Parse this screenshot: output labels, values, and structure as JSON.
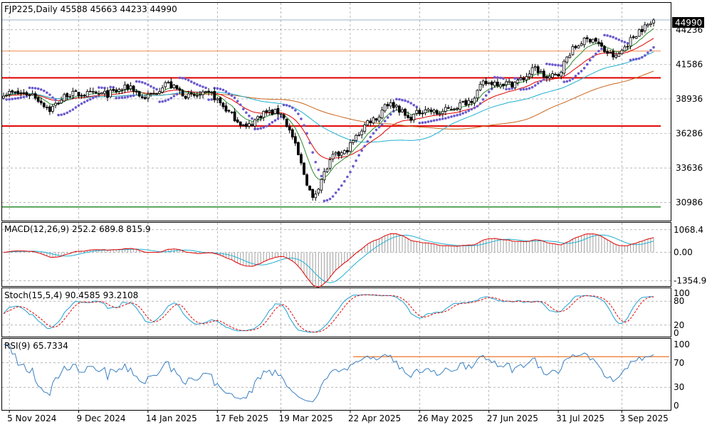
{
  "chart_data": {
    "type": "candlestick",
    "panels": {
      "price": {
        "header": "FJP225,Daily  45588 45663 44233 44990",
        "ylim": [
          29600,
          46300
        ],
        "ticks": [
          44236,
          41586,
          38936,
          36286,
          33636,
          30986
        ],
        "tick_labels": [
          "44236",
          "41586",
          "38936",
          "36286",
          "33636",
          "30986"
        ],
        "last_price_label": "44990",
        "last_price": 44990,
        "horizontal_levels": [
          {
            "value": 44990,
            "color": "#9fb3c8",
            "width": 1
          },
          {
            "value": 42600,
            "color": "#f08a4b",
            "width": 1
          },
          {
            "value": 40550,
            "color": "#e00000",
            "width": 2
          },
          {
            "value": 36850,
            "color": "#e00000",
            "width": 2
          },
          {
            "value": 30650,
            "color": "#2e8b2e",
            "width": 1.5
          }
        ],
        "ma_colors": {
          "fast": "#2e8b2e",
          "mid": "#e00000",
          "slow": "#20b0d0",
          "long": "#c8651b"
        },
        "psar_color": "#6a5acd"
      },
      "macd": {
        "header": "MACD(12,26,9) 252.2 689.8 815.9",
        "ylim": [
          -1600,
          1400
        ],
        "ticks": [
          1068.4,
          0,
          -1354.9
        ],
        "tick_labels": [
          "1068.4",
          "0.00",
          "-1354.9"
        ],
        "main_color": "#e00000",
        "signal_color": "#20b0d0",
        "hist_color": "#a0a0a0"
      },
      "stoch": {
        "header": "Stoch(15,5,4) 90.4585 93.2108",
        "ylim": [
          0,
          100
        ],
        "ticks": [
          100,
          80,
          20,
          0
        ],
        "tick_labels": [
          "100",
          "80",
          "20",
          "0"
        ],
        "k_color": "#20a0d0",
        "d_color": "#e00000"
      },
      "rsi": {
        "header": "RSI(9) 65.7334",
        "ylim": [
          0,
          100
        ],
        "ticks": [
          100,
          70,
          30,
          0
        ],
        "tick_labels": [
          "100",
          "70",
          "30",
          "0"
        ],
        "line_color": "#3a7fc0",
        "level_line": 80,
        "level_color": "#f08a4b"
      }
    },
    "x_labels": [
      "5 Nov 2024",
      "9 Dec 2024",
      "14 Jan 2025",
      "17 Feb 2025",
      "19 Mar 2025",
      "22 Apr 2025",
      "26 May 2025",
      "27 Jun 2025",
      "31 Jul 2025",
      "3 Sep 2025"
    ],
    "x_label_bar_index": [
      2,
      26,
      50,
      74,
      96,
      120,
      144,
      168,
      192,
      214
    ],
    "bar_count": 226,
    "keypoints": [
      [
        0,
        39400
      ],
      [
        10,
        39300
      ],
      [
        16,
        38100
      ],
      [
        22,
        39300
      ],
      [
        28,
        39300
      ],
      [
        36,
        39300
      ],
      [
        44,
        39900
      ],
      [
        48,
        39000
      ],
      [
        52,
        39300
      ],
      [
        56,
        40200
      ],
      [
        64,
        39100
      ],
      [
        72,
        39300
      ],
      [
        78,
        37900
      ],
      [
        84,
        36700
      ],
      [
        90,
        37900
      ],
      [
        96,
        37900
      ],
      [
        100,
        36000
      ],
      [
        104,
        33200
      ],
      [
        107,
        31200
      ],
      [
        110,
        32800
      ],
      [
        114,
        34500
      ],
      [
        118,
        34800
      ],
      [
        122,
        36000
      ],
      [
        126,
        37200
      ],
      [
        130,
        37600
      ],
      [
        132,
        38600
      ],
      [
        136,
        38400
      ],
      [
        140,
        37400
      ],
      [
        146,
        38200
      ],
      [
        150,
        37800
      ],
      [
        156,
        38300
      ],
      [
        162,
        38900
      ],
      [
        166,
        40100
      ],
      [
        170,
        40200
      ],
      [
        176,
        40100
      ],
      [
        180,
        40500
      ],
      [
        184,
        41300
      ],
      [
        188,
        40500
      ],
      [
        192,
        40800
      ],
      [
        196,
        42500
      ],
      [
        200,
        43300
      ],
      [
        204,
        43600
      ],
      [
        208,
        42600
      ],
      [
        212,
        42100
      ],
      [
        216,
        43200
      ],
      [
        220,
        44200
      ],
      [
        224,
        44700
      ],
      [
        225,
        44990
      ]
    ]
  }
}
